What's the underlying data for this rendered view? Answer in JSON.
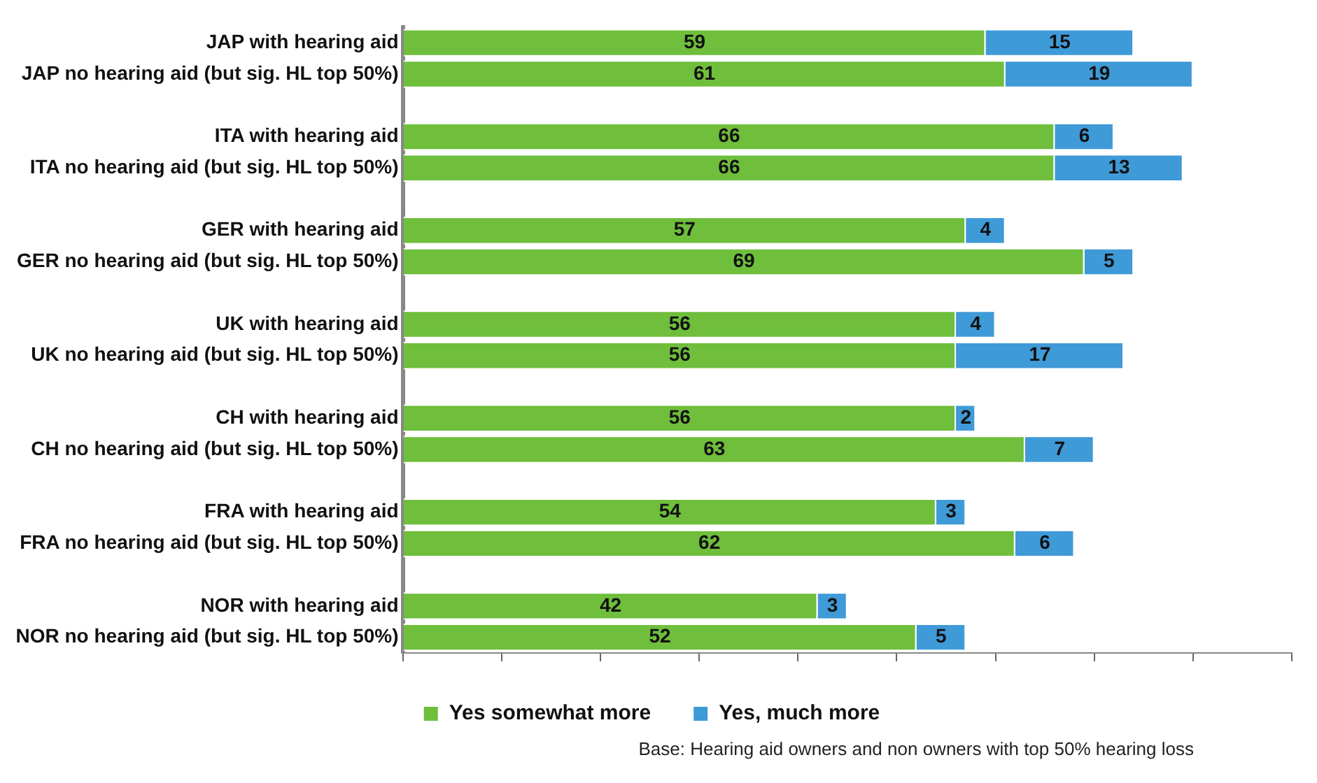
{
  "chart_data": {
    "type": "bar",
    "orientation": "horizontal",
    "stacked": true,
    "categories": [
      "JAP with hearing aid",
      "JAP no hearing aid (but sig. HL top 50%)",
      null,
      "ITA with hearing aid",
      "ITA no hearing aid (but sig. HL top 50%)",
      null,
      "GER with hearing aid",
      "GER no hearing aid (but sig. HL top 50%)",
      null,
      "UK with hearing aid",
      "UK no hearing aid (but sig. HL top 50%)",
      null,
      "CH with hearing aid",
      "CH no hearing aid (but sig. HL top 50%)",
      null,
      "FRA with hearing aid",
      "FRA no hearing aid (but sig. HL top 50%)",
      null,
      "NOR with hearing aid",
      "NOR no hearing aid (but sig. HL top 50%)"
    ],
    "series": [
      {
        "name": "Yes somewhat more",
        "color": "#6fbe3c",
        "values": [
          59,
          61,
          null,
          66,
          66,
          null,
          57,
          69,
          null,
          56,
          56,
          null,
          56,
          63,
          null,
          54,
          62,
          null,
          42,
          52
        ]
      },
      {
        "name": "Yes, much more",
        "color": "#3f9ad8",
        "values": [
          15,
          19,
          null,
          6,
          13,
          null,
          4,
          5,
          null,
          4,
          17,
          null,
          2,
          7,
          null,
          3,
          6,
          null,
          3,
          5
        ]
      }
    ],
    "xlim": [
      0,
      90
    ],
    "xticks": [
      {
        "value": 0,
        "label": null
      },
      {
        "value": 10,
        "label": null
      },
      {
        "value": 20,
        "label": null
      },
      {
        "value": 30,
        "label": null
      },
      {
        "value": 40,
        "label": null
      },
      {
        "value": 50,
        "label": null
      },
      {
        "value": 60,
        "label": null
      },
      {
        "value": 70,
        "label": null
      },
      {
        "value": 80,
        "label": null
      },
      {
        "value": 90,
        "label": null
      }
    ],
    "tick_labels": "y",
    "grid": false,
    "legend": "bottom",
    "data_labels": true,
    "annotations": [
      "Base: Hearing aid owners and non owners with top 50% hearing loss"
    ]
  }
}
